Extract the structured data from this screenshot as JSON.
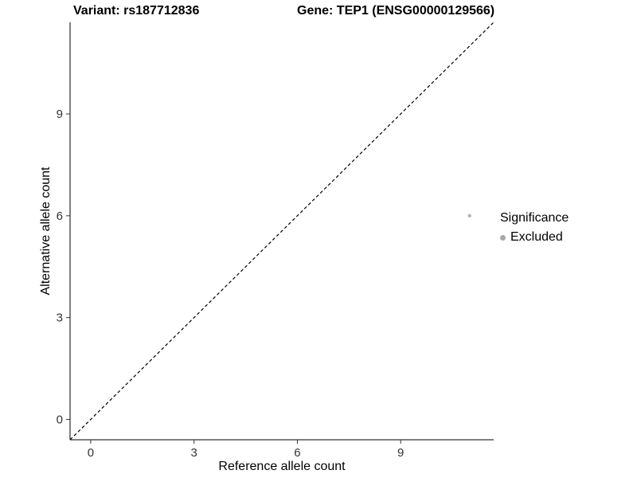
{
  "chart_data": {
    "type": "scatter",
    "titles": {
      "left": "Variant: rs187712836",
      "right": "Gene: TEP1 (ENSG00000129566)"
    },
    "xlabel": "Reference allele count",
    "ylabel": "Alternative allele count",
    "xlim": [
      -0.6,
      11.7
    ],
    "ylim": [
      -0.6,
      11.7
    ],
    "xticks": [
      0,
      3,
      6,
      9
    ],
    "yticks": [
      0,
      3,
      6,
      9
    ],
    "grid": false,
    "identity_line": {
      "style": "dashed",
      "color": "#000000",
      "from": [
        -0.6,
        -0.6
      ],
      "to": [
        11.7,
        11.7
      ]
    },
    "points": [
      {
        "x": 11,
        "y": 6,
        "significance": "Excluded",
        "color": "#b4b4b4",
        "radius": 2.2
      }
    ],
    "legend": {
      "position": "right",
      "title": "Significance",
      "entries": [
        {
          "label": "Excluded",
          "color": "#a8a8a8"
        }
      ]
    },
    "colors": {
      "axis": "#000000",
      "tick_label": "#333333",
      "background": "#ffffff"
    }
  }
}
